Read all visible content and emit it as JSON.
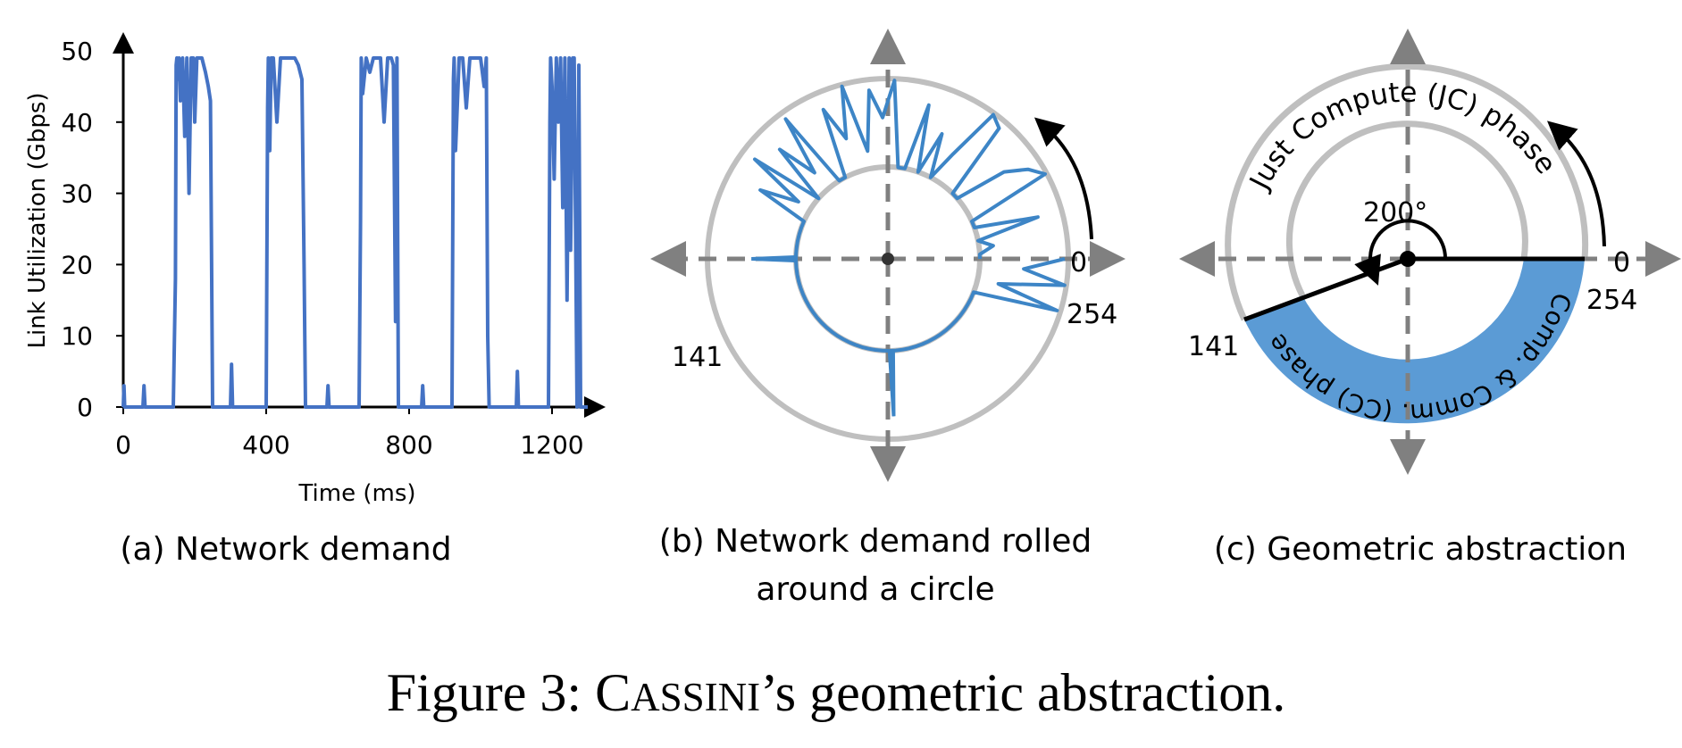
{
  "figure": {
    "caption_prefix": "Figure 3: ",
    "caption_name_initial": "C",
    "caption_name_rest": "ASSINI",
    "caption_suffix": "’s geometric abstraction."
  },
  "colors": {
    "series": "#4472c4",
    "polar_series": "#3d85c6",
    "ring": "#bfbfbf",
    "axis": "#808080",
    "cc_fill": "#5b9bd5",
    "ink": "#000000"
  },
  "chart_data": [
    {
      "type": "line",
      "subtitle": "(a) Network demand",
      "xlabel": "Time (ms)",
      "ylabel": "Link Utilization (Gbps)",
      "xlim": [
        0,
        1300
      ],
      "ylim": [
        0,
        50
      ],
      "xticks": [
        0,
        400,
        800,
        1200
      ],
      "yticks": [
        0,
        10,
        20,
        30,
        40,
        50
      ],
      "grid": false,
      "series": [
        {
          "x": [
            0,
            2,
            4,
            6,
            20,
            55,
            58,
            61,
            64,
            70,
            140,
            146,
            148,
            150,
            152,
            156,
            160,
            166,
            172,
            178,
            184,
            190,
            196,
            200,
            206,
            212,
            220,
            230,
            238,
            244,
            250,
            254,
            270,
            300,
            303,
            306,
            310,
            400,
            404,
            406,
            410,
            414,
            420,
            430,
            440,
            450,
            460,
            470,
            480,
            490,
            500,
            506,
            510,
            514,
            520,
            570,
            573,
            576,
            580,
            660,
            664,
            666,
            670,
            680,
            690,
            700,
            710,
            720,
            730,
            740,
            750,
            756,
            762,
            766,
            770,
            780,
            835,
            838,
            841,
            845,
            920,
            924,
            926,
            930,
            940,
            950,
            960,
            970,
            980,
            990,
            1000,
            1010,
            1016,
            1020,
            1024,
            1030,
            1100,
            1103,
            1106,
            1110,
            1190,
            1194,
            1196,
            1200,
            1206,
            1212,
            1218,
            1224,
            1230,
            1236,
            1242,
            1248,
            1252,
            1258,
            1262,
            1270,
            1275,
            1280,
            1290,
            1300
          ],
          "y": [
            0,
            3,
            0,
            0,
            0,
            0,
            3,
            0,
            0,
            0,
            0,
            18,
            48,
            49,
            46,
            49,
            43,
            49,
            38,
            49,
            30,
            49,
            49,
            40,
            49,
            49,
            49,
            47,
            45,
            43,
            0,
            0,
            0,
            0,
            6,
            0,
            0,
            0,
            42,
            49,
            36,
            49,
            49,
            40,
            49,
            49,
            49,
            49,
            49,
            48,
            46,
            20,
            0,
            0,
            0,
            0,
            3,
            0,
            0,
            0,
            26,
            49,
            44,
            49,
            47,
            49,
            49,
            49,
            40,
            49,
            49,
            48,
            12,
            49,
            0,
            0,
            0,
            3,
            0,
            0,
            0,
            46,
            49,
            36,
            49,
            49,
            42,
            49,
            49,
            49,
            49,
            45,
            49,
            10,
            0,
            0,
            0,
            5,
            0,
            0,
            0,
            40,
            49,
            45,
            32,
            49,
            40,
            49,
            28,
            49,
            15,
            49,
            22,
            49,
            49,
            0,
            48,
            0,
            0,
            0
          ]
        }
      ]
    },
    {
      "type": "polar-line",
      "subtitle_line1": "(b) Network demand rolled",
      "subtitle_line2": "around a circle",
      "angle_labels": [
        "0",
        "254",
        "141"
      ],
      "period": 254,
      "radial_range_gbps": [
        0,
        50
      ],
      "series": [
        {
          "t": [
            0,
            3,
            6,
            9,
            12,
            15,
            18,
            21,
            24,
            27,
            30,
            33,
            36,
            39,
            42,
            45,
            48,
            51,
            54,
            57,
            60,
            63,
            66,
            69,
            72,
            75,
            78,
            81,
            84,
            87,
            90,
            93,
            96,
            99,
            102,
            105,
            108,
            111,
            114,
            117,
            120,
            123,
            126,
            129,
            132,
            135,
            138,
            141,
            144,
            147,
            150,
            153,
            156,
            159,
            162,
            165,
            168,
            171,
            174,
            177,
            180,
            183,
            186,
            189,
            192,
            195,
            198,
            201,
            204,
            207,
            210,
            213,
            216,
            219,
            222,
            225,
            228,
            231,
            234,
            237,
            240,
            243,
            246,
            249,
            252
          ],
          "value": [
            48,
            25,
            49,
            12,
            48,
            0,
            0,
            0,
            0,
            0,
            0,
            0,
            0,
            0,
            0,
            0,
            0,
            0,
            0,
            0,
            0,
            0,
            0,
            0,
            0,
            0,
            0,
            0,
            0,
            0,
            0,
            0,
            0,
            0,
            0,
            0,
            0,
            0,
            0,
            0,
            0,
            0,
            0,
            0,
            0,
            0,
            0,
            0,
            0,
            30,
            8,
            42,
            0,
            35,
            12,
            46,
            0,
            0,
            40,
            20,
            49,
            10,
            44,
            28,
            49,
            0,
            0,
            38,
            0,
            25,
            0,
            18,
            49,
            45,
            0,
            0,
            30,
            42,
            49,
            0,
            0,
            36,
            0,
            8,
            0
          ],
          "spikes": [
            {
              "t": 62,
              "value": 22
            },
            {
              "t": 127,
              "value": 10
            }
          ]
        }
      ]
    },
    {
      "type": "geometric-abstraction",
      "subtitle": "(c) Geometric abstraction",
      "angle_labels": [
        "0",
        "254",
        "141"
      ],
      "arc_label": "Just Compute (JC) phase",
      "cc_label": "Comp. & Comm. (CC) phase",
      "angle_annotation": "200°",
      "period": 254,
      "cc_phase_start_degrees": 0,
      "cc_phase_end_degrees": 200
    }
  ]
}
